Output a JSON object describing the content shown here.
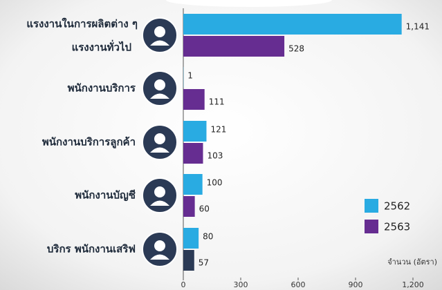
{
  "chart_data": {
    "type": "bar",
    "orientation": "horizontal",
    "categories": [
      [
        "แรงงานในการผลิตต่าง ๆ",
        "แรงงานทั่วไป"
      ],
      [
        "พนักงานบริการ"
      ],
      [
        "พนักงานบริการลูกค้า"
      ],
      [
        "พนักงานบัญชี"
      ],
      [
        "บริกร พนักงานเสริฟ"
      ]
    ],
    "series": [
      {
        "name": "2562",
        "color": "#29abe2",
        "values": [
          1141,
          1,
          121,
          100,
          80
        ],
        "value_labels": [
          "1,141",
          "1",
          "121",
          "100",
          "80"
        ]
      },
      {
        "name": "2563",
        "color": "#662d91",
        "colors": [
          "#662d91",
          "#662d91",
          "#662d91",
          "#662d91",
          "#2b3a55"
        ],
        "values": [
          528,
          111,
          103,
          60,
          57
        ]
      }
    ],
    "x_label": "จำนวน (อัตรา)",
    "xlim": [
      0,
      1200
    ],
    "xticks": [
      0,
      300,
      600,
      900,
      {
        "value": 1200,
        "label": "1,200"
      }
    ],
    "legend": "lower right"
  }
}
